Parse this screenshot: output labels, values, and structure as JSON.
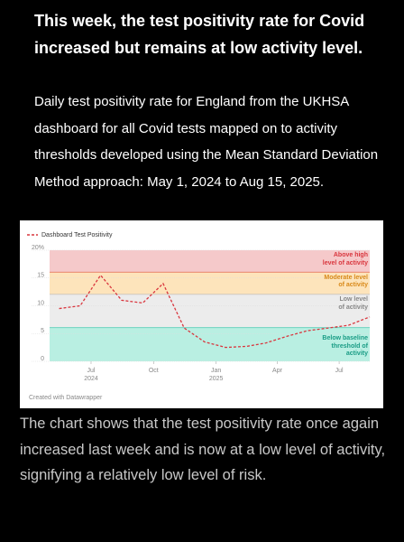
{
  "heading": "This week, the test positivity rate for Covid increased but remains at low activity level.",
  "description": "Daily test positivity rate for England from the UKHSA dashboard for all Covid tests mapped on to activity thresholds developed using the Mean Standard Deviation Method approach: May 1, 2024 to Aug 15, 2025.",
  "chart_data": {
    "type": "line",
    "x": [
      "2024-05",
      "2024-06",
      "2024-07",
      "2024-08",
      "2024-09",
      "2024-10",
      "2024-11",
      "2024-12",
      "2025-01",
      "2025-02",
      "2025-03",
      "2025-04",
      "2025-05",
      "2025-06",
      "2025-07",
      "2025-08"
    ],
    "series": [
      {
        "name": "Dashboard Test Positivity",
        "color": "#d9363e",
        "values": [
          9.5,
          10,
          15.5,
          11,
          10.5,
          14,
          6,
          3.5,
          2.5,
          2.7,
          3.3,
          4.5,
          5.5,
          6,
          6.5,
          8
        ]
      }
    ],
    "ylim": [
      0,
      20
    ],
    "yticks": [
      0,
      5,
      10,
      15,
      {
        "value": 20,
        "label": "20%"
      }
    ],
    "xlim": [
      "2024-05",
      "2025-08"
    ],
    "xticks": [
      {
        "value": "2024-07",
        "label": "Jul",
        "sublabel": "2024"
      },
      {
        "value": "2024-10",
        "label": "Oct"
      },
      {
        "value": "2025-01",
        "label": "Jan",
        "sublabel": "2025"
      },
      {
        "value": "2025-04",
        "label": "Apr"
      },
      {
        "value": "2025-07",
        "label": "Jul"
      }
    ],
    "bands": [
      {
        "label": "Above high\nlevel of activity",
        "from": 16,
        "to": 20,
        "color": "#f5c9ca",
        "line": "#e0634f",
        "text_color": "#d9363e"
      },
      {
        "label": "Moderate level\nof activity",
        "from": 12,
        "to": 16,
        "color": "#fde4bb",
        "line": "#bdbdbd",
        "text_color": "#d98a1a"
      },
      {
        "label": "Low level\nof activity",
        "from": 6,
        "to": 12,
        "color": "#ececec",
        "line": "#3cc9b0",
        "text_color": "#888888"
      },
      {
        "label": "Below baseline\nthreshold of\nactivity",
        "from": 0,
        "to": 6,
        "color": "#b9efe2",
        "line": null,
        "text_color": "#1a9c85"
      }
    ],
    "footer": "Created with Datawrapper"
  },
  "closing": "The chart shows that the test positivity rate once again increased last week and is now at a low level of activity, signifying a relatively low level of risk."
}
